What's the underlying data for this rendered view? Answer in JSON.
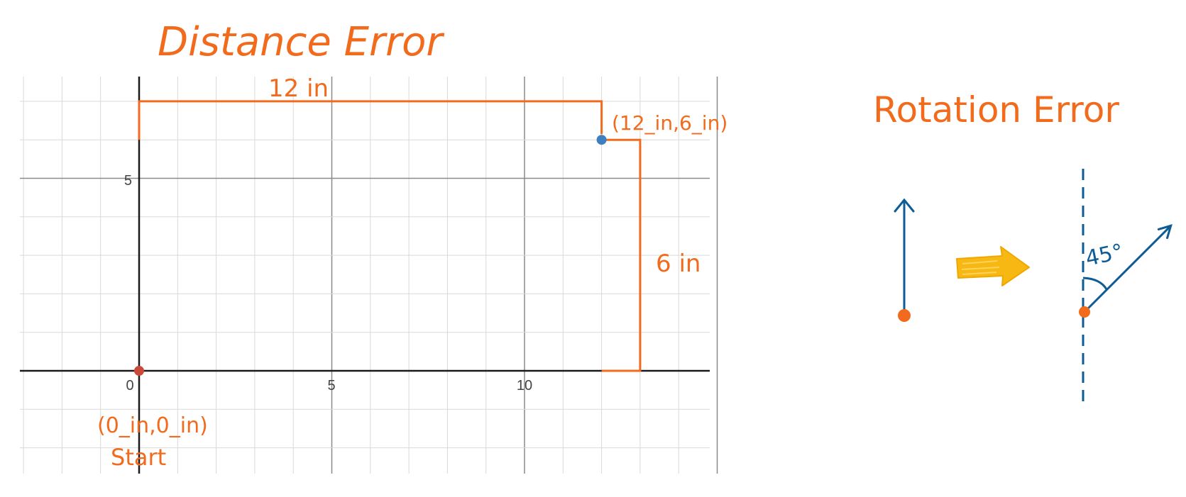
{
  "titles": {
    "distance": "Distance Error",
    "rotation": "Rotation Error"
  },
  "graph": {
    "x_ticks": [
      "0",
      "5",
      "10"
    ],
    "y_ticks": [
      "5"
    ],
    "start_point_label": "(0_in,0_in)",
    "start_caption": "Start",
    "end_point_label": "(12_in,6_in)",
    "horizontal_dimension": "12 in",
    "vertical_dimension": "6 in",
    "start_point": {
      "x": 0,
      "y": 0
    },
    "end_point": {
      "x": 12,
      "y": 6
    },
    "x_range": [
      -3,
      15
    ],
    "y_range": [
      -2.7,
      7.7
    ]
  },
  "rotation": {
    "angle_label": "45°",
    "angle_degrees": 45
  },
  "colors": {
    "orange": "#f26b1d",
    "blue": "#0e5c96",
    "point_blue": "#3d7fc1",
    "point_red": "#c94a3a",
    "arrow_yellow": "#f7b814",
    "grid_minor": "#d9d9d9",
    "grid_major": "#8a8a8a",
    "axis": "#1a1a1a"
  }
}
